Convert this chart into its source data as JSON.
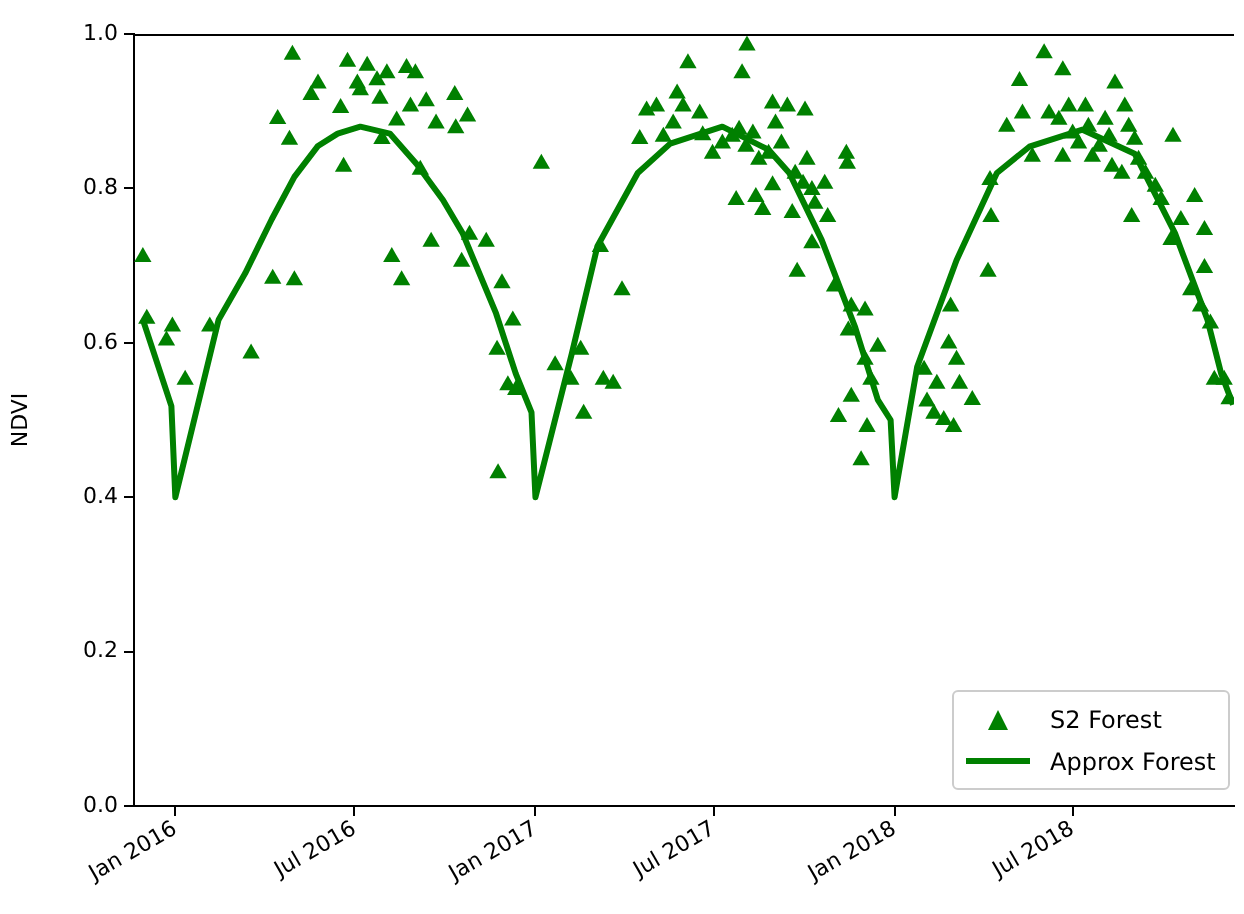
{
  "chart_data": {
    "type": "scatter",
    "ylabel": "NDVI",
    "xlim": [
      "2015-11-20",
      "2018-12-12"
    ],
    "ylim": [
      0,
      1
    ],
    "xticks": [
      {
        "value": "2016-01-01",
        "label": "Jan 2016"
      },
      {
        "value": "2016-07-01",
        "label": "Jul 2016"
      },
      {
        "value": "2017-01-01",
        "label": "Jan 2017"
      },
      {
        "value": "2017-07-01",
        "label": "Jul 2017"
      },
      {
        "value": "2018-01-01",
        "label": "Jan 2018"
      },
      {
        "value": "2018-07-01",
        "label": "Jul 2018"
      }
    ],
    "yticks": [
      {
        "value": 0,
        "label": "0.0"
      },
      {
        "value": 0.2,
        "label": "0.2"
      },
      {
        "value": 0.4,
        "label": "0.4"
      },
      {
        "value": 0.6,
        "label": "0.6"
      },
      {
        "value": 0.8,
        "label": "0.8"
      },
      {
        "value": 1,
        "label": "1.0"
      }
    ],
    "grid": false,
    "legend": "bottom right",
    "series": [
      {
        "name": "S2 Forest",
        "marker": "triangle",
        "color": "#008000",
        "x": [
          "2015-11-29",
          "2015-12-03",
          "2015-12-23",
          "2015-12-29",
          "2016-01-11",
          "2016-02-05",
          "2016-03-18",
          "2016-04-09",
          "2016-05-01",
          "2016-04-14",
          "2016-04-26",
          "2016-04-29",
          "2016-05-18",
          "2016-05-25",
          "2016-06-17",
          "2016-06-20",
          "2016-06-24",
          "2016-07-04",
          "2016-07-14",
          "2016-07-07",
          "2016-07-24",
          "2016-08-03",
          "2016-07-27",
          "2016-07-29",
          "2016-08-13",
          "2016-08-23",
          "2016-09-01",
          "2016-08-27",
          "2016-09-12",
          "2016-09-06",
          "2016-09-22",
          "2016-10-11",
          "2016-10-12",
          "2016-10-24",
          "2016-08-08",
          "2016-08-18",
          "2016-09-17",
          "2016-10-18",
          "2016-10-26",
          "2016-11-12",
          "2016-11-28",
          "2016-12-09",
          "2016-11-23",
          "2016-12-04",
          "2016-12-12",
          "2016-11-24",
          "2017-01-07",
          "2017-01-21",
          "2017-02-06",
          "2017-02-16",
          "2017-02-19",
          "2017-03-08",
          "2017-03-11",
          "2017-03-21",
          "2017-03-30",
          "2017-04-17",
          "2017-04-24",
          "2017-05-04",
          "2017-05-11",
          "2017-05-25",
          "2017-05-31",
          "2017-06-05",
          "2017-05-21",
          "2017-06-17",
          "2017-06-20",
          "2017-06-30",
          "2017-07-10",
          "2017-07-20",
          "2017-07-27",
          "2017-07-30",
          "2017-08-04",
          "2017-07-24",
          "2017-08-03",
          "2017-08-10",
          "2017-08-16",
          "2017-08-13",
          "2017-08-20",
          "2017-08-26",
          "2017-08-30",
          "2017-09-02",
          "2017-09-08",
          "2017-08-30",
          "2017-09-14",
          "2017-09-19",
          "2017-09-22",
          "2017-10-02",
          "2017-10-04",
          "2017-09-30",
          "2017-10-09",
          "2017-10-12",
          "2017-10-22",
          "2017-10-25",
          "2017-10-09",
          "2017-09-24",
          "2017-11-13",
          "2017-11-14",
          "2017-11-01",
          "2017-11-18",
          "2017-12-02",
          "2017-11-15",
          "2017-12-15",
          "2017-12-02",
          "2017-12-08",
          "2017-11-18",
          "2017-11-05",
          "2017-12-04",
          "2017-11-28",
          "2018-01-31",
          "2018-02-03",
          "2018-02-13",
          "2018-02-10",
          "2018-02-20",
          "2018-03-02",
          "2018-02-25",
          "2018-02-27",
          "2018-03-05",
          "2018-03-08",
          "2018-03-21",
          "2018-04-06",
          "2018-04-09",
          "2018-04-08",
          "2018-04-25",
          "2018-05-08",
          "2018-05-11",
          "2018-05-21",
          "2018-06-02",
          "2018-06-21",
          "2018-06-07",
          "2018-06-17",
          "2018-06-21",
          "2018-06-27",
          "2018-07-01",
          "2018-07-07",
          "2018-07-14",
          "2018-07-17",
          "2018-07-21",
          "2018-07-28",
          "2018-08-03",
          "2018-08-07",
          "2018-08-13",
          "2018-08-10",
          "2018-08-23",
          "2018-08-27",
          "2018-08-20",
          "2018-09-02",
          "2018-08-30",
          "2018-09-06",
          "2018-09-13",
          "2018-09-23",
          "2018-09-29",
          "2018-10-11",
          "2018-10-19",
          "2018-10-09",
          "2018-11-02",
          "2018-11-12",
          "2018-11-12",
          "2018-10-29",
          "2018-11-08",
          "2018-11-18",
          "2018-11-22",
          "2018-12-02",
          "2018-12-07"
        ],
        "values": [
          0.711,
          0.631,
          0.603,
          0.621,
          0.552,
          0.621,
          0.586,
          0.683,
          0.681,
          0.89,
          0.863,
          0.973,
          0.921,
          0.936,
          0.904,
          0.828,
          0.964,
          0.936,
          0.959,
          0.927,
          0.94,
          0.949,
          0.916,
          0.864,
          0.888,
          0.956,
          0.949,
          0.906,
          0.913,
          0.824,
          0.884,
          0.921,
          0.878,
          0.893,
          0.711,
          0.681,
          0.731,
          0.705,
          0.74,
          0.731,
          0.677,
          0.629,
          0.591,
          0.545,
          0.539,
          0.431,
          0.832,
          0.571,
          0.552,
          0.591,
          0.508,
          0.724,
          0.552,
          0.547,
          0.668,
          0.864,
          0.901,
          0.906,
          0.867,
          0.923,
          0.906,
          0.962,
          0.884,
          0.897,
          0.869,
          0.845,
          0.858,
          0.867,
          0.876,
          0.949,
          0.985,
          0.785,
          0.854,
          0.871,
          0.837,
          0.789,
          0.772,
          0.845,
          0.91,
          0.884,
          0.858,
          0.804,
          0.906,
          0.768,
          0.819,
          0.901,
          0.837,
          0.806,
          0.798,
          0.78,
          0.806,
          0.763,
          0.729,
          0.692,
          0.845,
          0.832,
          0.673,
          0.647,
          0.642,
          0.616,
          0.595,
          0.578,
          0.552,
          0.53,
          0.504,
          0.491,
          0.448,
          0.565,
          0.524,
          0.547,
          0.508,
          0.5,
          0.491,
          0.599,
          0.647,
          0.578,
          0.547,
          0.526,
          0.692,
          0.763,
          0.811,
          0.88,
          0.939,
          0.897,
          0.841,
          0.975,
          0.953,
          0.897,
          0.889,
          0.841,
          0.906,
          0.871,
          0.858,
          0.906,
          0.88,
          0.841,
          0.854,
          0.889,
          0.867,
          0.936,
          0.828,
          0.906,
          0.88,
          0.819,
          0.863,
          0.763,
          0.837,
          0.819,
          0.802,
          0.785,
          0.867,
          0.759,
          0.733,
          0.789,
          0.746,
          0.697,
          0.668,
          0.647,
          0.625,
          0.552,
          0.552,
          0.527
        ]
      },
      {
        "name": "Approx Forest",
        "type": "line",
        "marker": "none",
        "line_style": "solid",
        "color": "#008000",
        "x": [
          "2015-11-29",
          "2015-12-28",
          "2016-01-01",
          "2016-02-14",
          "2016-03-12",
          "2016-04-08",
          "2016-05-01",
          "2016-05-25",
          "2016-06-14",
          "2016-07-07",
          "2016-08-06",
          "2016-09-02",
          "2016-09-29",
          "2016-10-19",
          "2016-11-22",
          "2016-12-12",
          "2016-12-28",
          "2017-01-01",
          "2017-02-07",
          "2017-03-05",
          "2017-04-15",
          "2017-05-18",
          "2017-07-10",
          "2017-08-26",
          "2017-09-16",
          "2017-10-19",
          "2017-11-22",
          "2017-12-15",
          "2017-12-28",
          "2018-01-01",
          "2018-01-24",
          "2018-03-05",
          "2018-04-15",
          "2018-05-18",
          "2018-07-11",
          "2018-09-02",
          "2018-10-13",
          "2018-11-15",
          "2018-11-29",
          "2018-12-11"
        ],
        "values": [
          0.63,
          0.518,
          0.4,
          0.63,
          0.69,
          0.76,
          0.815,
          0.855,
          0.871,
          0.88,
          0.871,
          0.832,
          0.785,
          0.742,
          0.638,
          0.56,
          0.51,
          0.4,
          0.586,
          0.725,
          0.82,
          0.858,
          0.88,
          0.85,
          0.82,
          0.733,
          0.62,
          0.526,
          0.5,
          0.4,
          0.569,
          0.707,
          0.82,
          0.854,
          0.876,
          0.845,
          0.742,
          0.63,
          0.56,
          0.52
        ]
      }
    ]
  }
}
